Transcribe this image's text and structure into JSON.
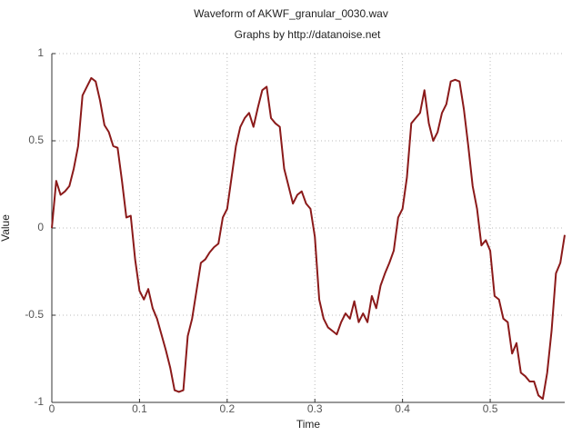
{
  "chart_data": {
    "type": "line",
    "title": "Waveform of AKWF_granular_0030.wav",
    "subtitle": "Graphs by http://datanoise.net",
    "x_label": "Time",
    "y_label": "Value",
    "x": [
      0,
      0.005,
      0.01,
      0.015,
      0.02,
      0.025,
      0.03,
      0.035,
      0.04,
      0.045,
      0.05,
      0.055,
      0.06,
      0.065,
      0.07,
      0.075,
      0.08,
      0.085,
      0.09,
      0.095,
      0.1,
      0.105,
      0.11,
      0.115,
      0.12,
      0.125,
      0.13,
      0.135,
      0.14,
      0.145,
      0.15,
      0.155,
      0.16,
      0.165,
      0.17,
      0.175,
      0.18,
      0.185,
      0.19,
      0.195,
      0.2,
      0.205,
      0.21,
      0.215,
      0.22,
      0.225,
      0.23,
      0.235,
      0.24,
      0.245,
      0.25,
      0.255,
      0.26,
      0.265,
      0.27,
      0.275,
      0.28,
      0.285,
      0.29,
      0.295,
      0.3,
      0.305,
      0.31,
      0.315,
      0.32,
      0.325,
      0.33,
      0.335,
      0.34,
      0.345,
      0.35,
      0.355,
      0.36,
      0.365,
      0.37,
      0.375,
      0.38,
      0.385,
      0.39,
      0.395,
      0.4,
      0.405,
      0.41,
      0.415,
      0.42,
      0.425,
      0.43,
      0.435,
      0.44,
      0.445,
      0.45,
      0.455,
      0.46,
      0.465,
      0.47,
      0.475,
      0.48,
      0.485,
      0.49,
      0.495,
      0.5,
      0.505,
      0.51,
      0.515,
      0.52,
      0.525,
      0.53,
      0.535,
      0.54,
      0.545,
      0.55,
      0.555,
      0.56,
      0.565,
      0.57,
      0.575,
      0.58,
      0.585
    ],
    "series": [
      {
        "name": "Value",
        "color": "#8b1a1a",
        "values": [
          0,
          0.27,
          0.19,
          0.21,
          0.24,
          0.34,
          0.47,
          0.76,
          0.81,
          0.86,
          0.84,
          0.73,
          0.59,
          0.55,
          0.47,
          0.46,
          0.27,
          0.06,
          0.07,
          -0.18,
          -0.36,
          -0.41,
          -0.35,
          -0.46,
          -0.52,
          -0.61,
          -0.7,
          -0.8,
          -0.93,
          -0.94,
          -0.93,
          -0.62,
          -0.52,
          -0.36,
          -0.2,
          -0.18,
          -0.14,
          -0.11,
          -0.09,
          0.06,
          0.11,
          0.29,
          0.47,
          0.58,
          0.63,
          0.66,
          0.58,
          0.69,
          0.79,
          0.81,
          0.63,
          0.6,
          0.58,
          0.34,
          0.24,
          0.14,
          0.19,
          0.21,
          0.14,
          0.11,
          -0.05,
          -0.41,
          -0.52,
          -0.57,
          -0.59,
          -0.61,
          -0.54,
          -0.49,
          -0.52,
          -0.42,
          -0.54,
          -0.49,
          -0.54,
          -0.39,
          -0.46,
          -0.33,
          -0.26,
          -0.2,
          -0.13,
          0.06,
          0.11,
          0.29,
          0.6,
          0.63,
          0.66,
          0.79,
          0.6,
          0.5,
          0.55,
          0.66,
          0.71,
          0.84,
          0.85,
          0.84,
          0.68,
          0.47,
          0.24,
          0.11,
          -0.1,
          -0.07,
          -0.13,
          -0.39,
          -0.41,
          -0.52,
          -0.54,
          -0.72,
          -0.66,
          -0.83,
          -0.85,
          -0.88,
          -0.88,
          -0.96,
          -0.98,
          -0.83,
          -0.59,
          -0.26,
          -0.2,
          -0.04
        ]
      }
    ],
    "xlim": [
      0,
      0.585
    ],
    "ylim": [
      -1,
      1
    ],
    "xticks": [
      0,
      0.1,
      0.2,
      0.3,
      0.4,
      0.5
    ],
    "yticks": [
      -1,
      -0.5,
      0,
      0.5,
      1
    ],
    "grid": true
  }
}
